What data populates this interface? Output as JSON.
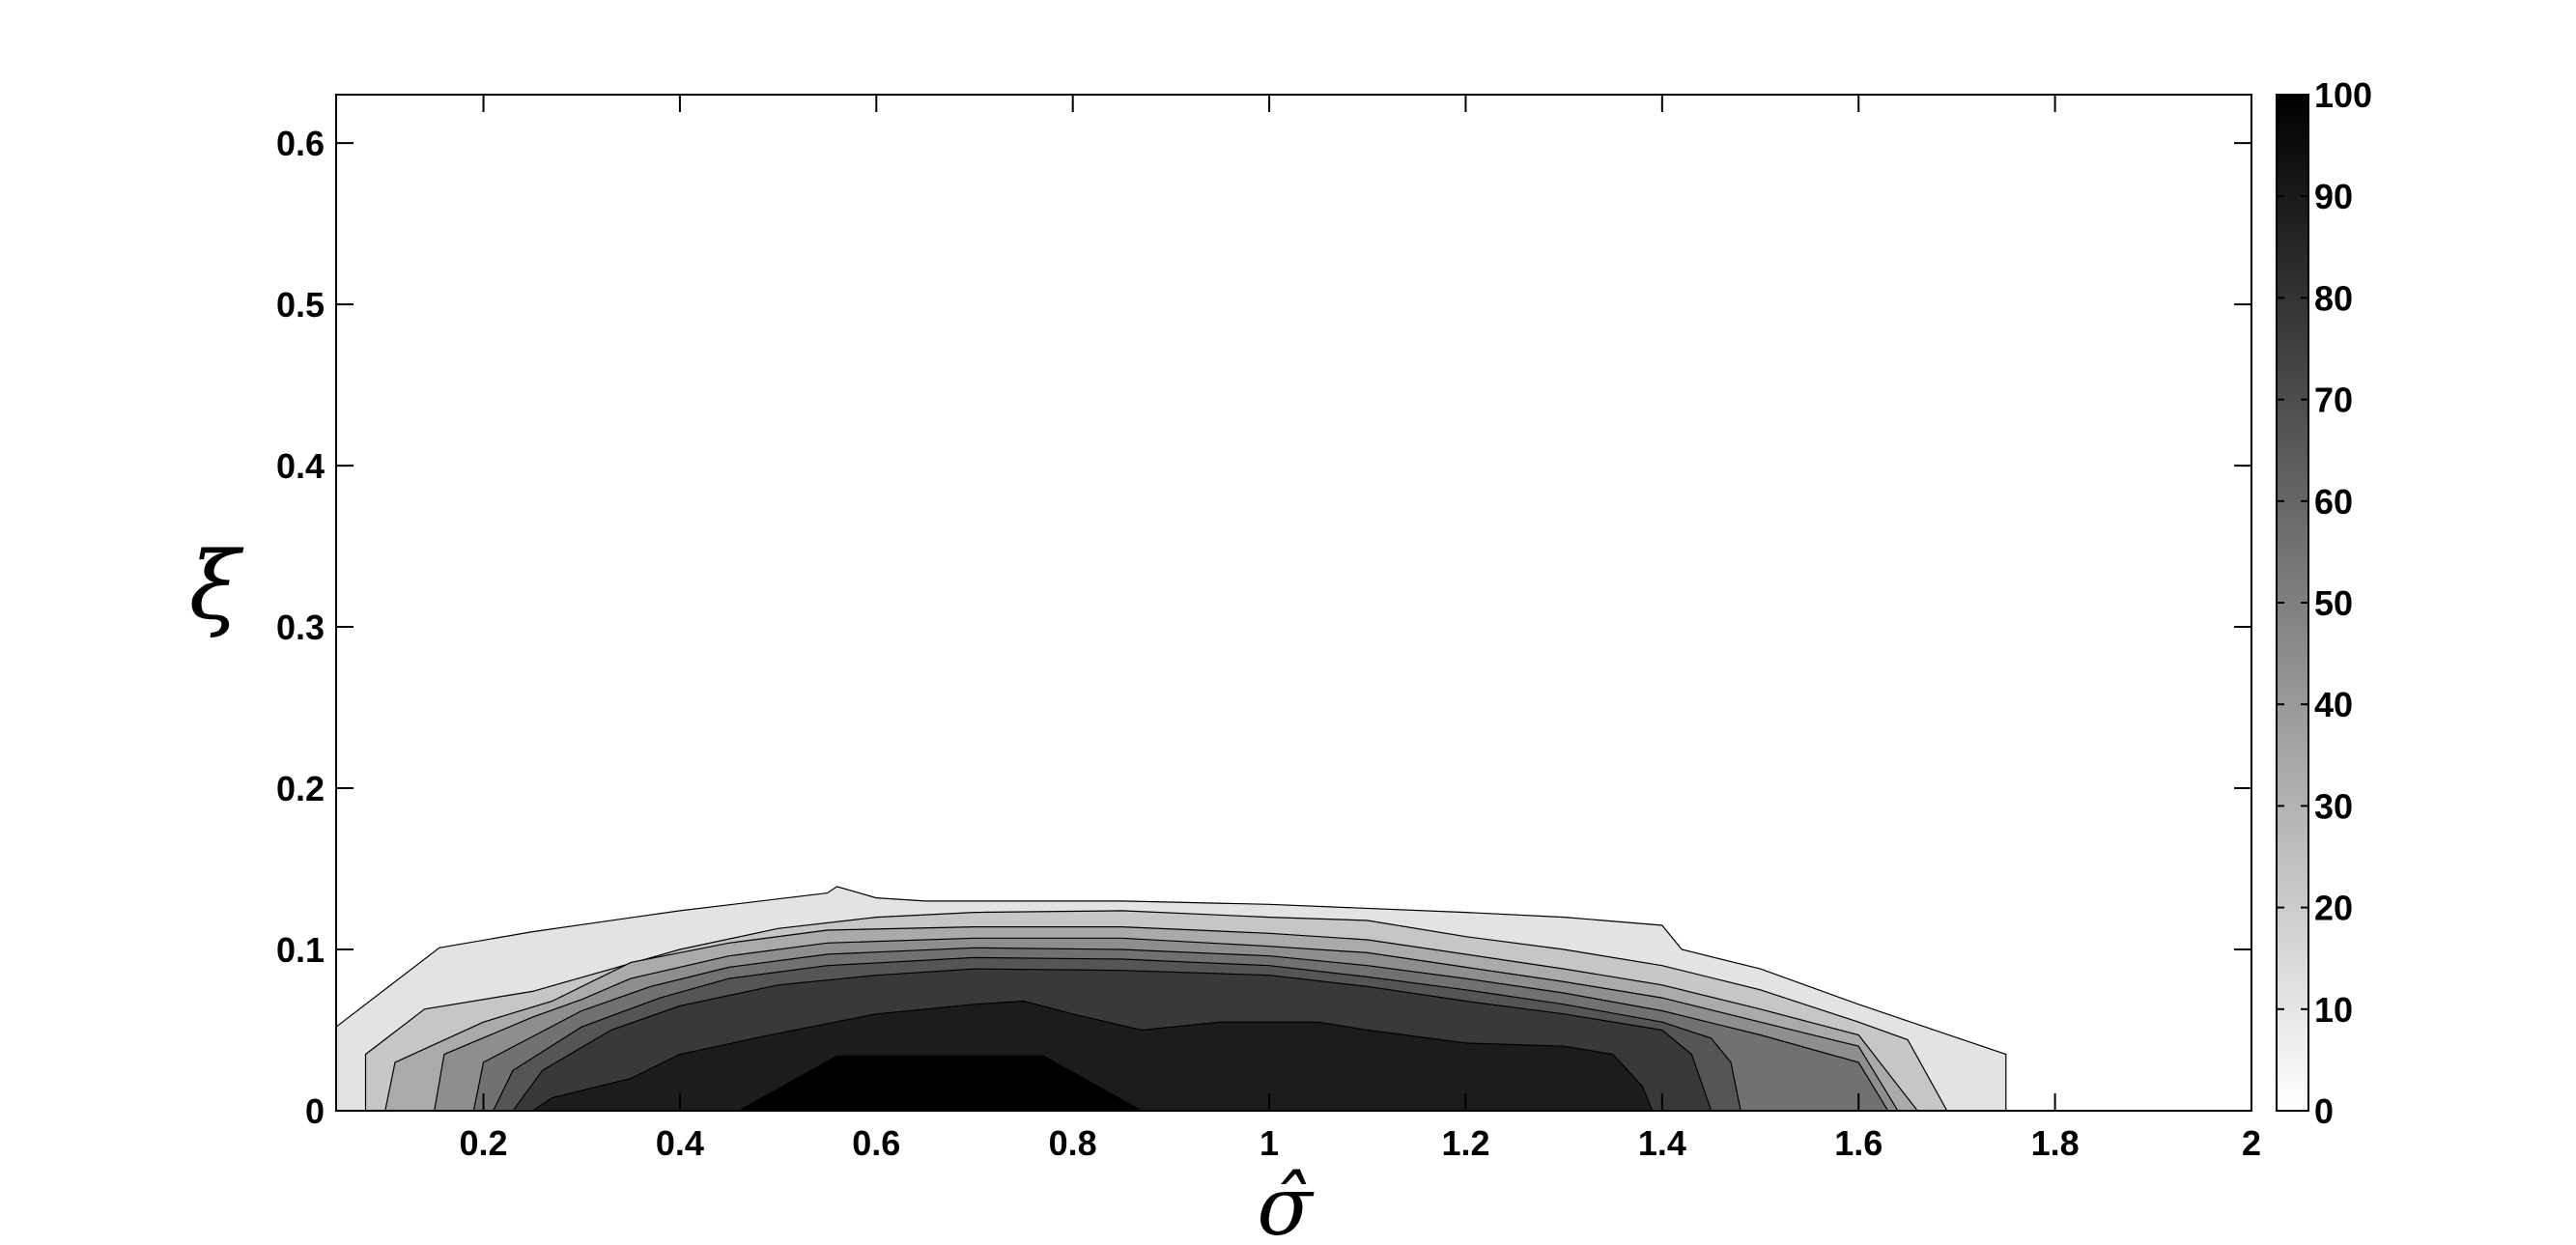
{
  "chart_data": {
    "type": "contourf",
    "xlabel": "σ̂",
    "ylabel": "ξ",
    "xlim": [
      0.05,
      2.0
    ],
    "ylim": [
      0,
      0.63
    ],
    "xticks": [
      0.2,
      0.4,
      0.6,
      0.8,
      1,
      1.2,
      1.4,
      1.6,
      1.8,
      2
    ],
    "yticks": [
      0,
      0.1,
      0.2,
      0.3,
      0.4,
      0.5,
      0.6
    ],
    "colorbar": {
      "range": [
        0,
        100
      ],
      "ticks": [
        0,
        10,
        20,
        30,
        40,
        50,
        60,
        70,
        80,
        90,
        100
      ],
      "colormap": "gray-reversed"
    },
    "levels": [
      {
        "value": 0,
        "color": "#ffffff",
        "boundary": [
          [
            0.05,
            0.018
          ],
          [
            0.06,
            0
          ],
          [
            0.05,
            0
          ]
        ]
      },
      {
        "value": 10,
        "color": "#e3e3e3",
        "boundary": [
          [
            0.05,
            0.052
          ],
          [
            0.155,
            0.101
          ],
          [
            0.25,
            0.111
          ],
          [
            0.4,
            0.124
          ],
          [
            0.55,
            0.135
          ],
          [
            0.56,
            0.139
          ],
          [
            0.6,
            0.132
          ],
          [
            0.65,
            0.13
          ],
          [
            0.85,
            0.13
          ],
          [
            1.0,
            0.128
          ],
          [
            1.2,
            0.123
          ],
          [
            1.3,
            0.12
          ],
          [
            1.4,
            0.115
          ],
          [
            1.42,
            0.1
          ],
          [
            1.5,
            0.088
          ],
          [
            1.6,
            0.066
          ],
          [
            1.75,
            0.035
          ],
          [
            1.75,
            0
          ]
        ]
      },
      {
        "value": 20,
        "color": "#c6c6c6",
        "boundary": [
          [
            0.08,
            0
          ],
          [
            0.08,
            0.035
          ],
          [
            0.14,
            0.063
          ],
          [
            0.25,
            0.074
          ],
          [
            0.4,
            0.1
          ],
          [
            0.5,
            0.113
          ],
          [
            0.6,
            0.12
          ],
          [
            0.7,
            0.123
          ],
          [
            0.85,
            0.124
          ],
          [
            1.0,
            0.12
          ],
          [
            1.1,
            0.118
          ],
          [
            1.2,
            0.108
          ],
          [
            1.3,
            0.1
          ],
          [
            1.4,
            0.09
          ],
          [
            1.5,
            0.075
          ],
          [
            1.6,
            0.055
          ],
          [
            1.65,
            0.044
          ],
          [
            1.69,
            0
          ]
        ]
      },
      {
        "value": 30,
        "color": "#aaaaaa",
        "boundary": [
          [
            0.1,
            0
          ],
          [
            0.11,
            0.03
          ],
          [
            0.2,
            0.055
          ],
          [
            0.27,
            0.068
          ],
          [
            0.35,
            0.092
          ],
          [
            0.45,
            0.104
          ],
          [
            0.55,
            0.112
          ],
          [
            0.7,
            0.114
          ],
          [
            0.85,
            0.114
          ],
          [
            1.0,
            0.11
          ],
          [
            1.1,
            0.106
          ],
          [
            1.2,
            0.097
          ],
          [
            1.3,
            0.088
          ],
          [
            1.4,
            0.078
          ],
          [
            1.5,
            0.063
          ],
          [
            1.6,
            0.047
          ],
          [
            1.66,
            0
          ]
        ]
      },
      {
        "value": 40,
        "color": "#8e8e8e",
        "boundary": [
          [
            0.15,
            0
          ],
          [
            0.16,
            0.035
          ],
          [
            0.25,
            0.058
          ],
          [
            0.3,
            0.069
          ],
          [
            0.35,
            0.082
          ],
          [
            0.45,
            0.096
          ],
          [
            0.55,
            0.104
          ],
          [
            0.7,
            0.107
          ],
          [
            0.85,
            0.107
          ],
          [
            1.0,
            0.102
          ],
          [
            1.1,
            0.098
          ],
          [
            1.2,
            0.089
          ],
          [
            1.3,
            0.08
          ],
          [
            1.4,
            0.07
          ],
          [
            1.5,
            0.055
          ],
          [
            1.6,
            0.04
          ],
          [
            1.64,
            0
          ]
        ]
      },
      {
        "value": 50,
        "color": "#717171",
        "boundary": [
          [
            0.19,
            0
          ],
          [
            0.2,
            0.03
          ],
          [
            0.3,
            0.062
          ],
          [
            0.37,
            0.077
          ],
          [
            0.45,
            0.089
          ],
          [
            0.55,
            0.097
          ],
          [
            0.7,
            0.101
          ],
          [
            0.85,
            0.1
          ],
          [
            1.0,
            0.096
          ],
          [
            1.1,
            0.09
          ],
          [
            1.2,
            0.082
          ],
          [
            1.3,
            0.073
          ],
          [
            1.4,
            0.062
          ],
          [
            1.5,
            0.047
          ],
          [
            1.6,
            0.03
          ],
          [
            1.63,
            0
          ]
        ]
      },
      {
        "value": 60,
        "color": "#555555",
        "boundary": [
          [
            0.21,
            0
          ],
          [
            0.23,
            0.025
          ],
          [
            0.3,
            0.052
          ],
          [
            0.38,
            0.07
          ],
          [
            0.45,
            0.082
          ],
          [
            0.55,
            0.09
          ],
          [
            0.7,
            0.095
          ],
          [
            0.85,
            0.094
          ],
          [
            1.0,
            0.09
          ],
          [
            1.1,
            0.083
          ],
          [
            1.2,
            0.075
          ],
          [
            1.3,
            0.066
          ],
          [
            1.4,
            0.055
          ],
          [
            1.45,
            0.045
          ],
          [
            1.47,
            0.03
          ],
          [
            1.48,
            0
          ]
        ]
      },
      {
        "value": 70,
        "color": "#393939",
        "boundary": [
          [
            0.23,
            0
          ],
          [
            0.26,
            0.025
          ],
          [
            0.33,
            0.05
          ],
          [
            0.4,
            0.065
          ],
          [
            0.5,
            0.078
          ],
          [
            0.6,
            0.084
          ],
          [
            0.7,
            0.088
          ],
          [
            0.85,
            0.087
          ],
          [
            1.0,
            0.084
          ],
          [
            1.1,
            0.077
          ],
          [
            1.2,
            0.068
          ],
          [
            1.3,
            0.06
          ],
          [
            1.4,
            0.05
          ],
          [
            1.43,
            0.035
          ],
          [
            1.45,
            0
          ]
        ]
      },
      {
        "value": 80,
        "color": "#1c1c1c",
        "boundary": [
          [
            0.25,
            0
          ],
          [
            0.27,
            0.008
          ],
          [
            0.35,
            0.02
          ],
          [
            0.4,
            0.035
          ],
          [
            0.5,
            0.048
          ],
          [
            0.6,
            0.06
          ],
          [
            0.7,
            0.066
          ],
          [
            0.75,
            0.068
          ],
          [
            0.8,
            0.06
          ],
          [
            0.87,
            0.05
          ],
          [
            0.95,
            0.055
          ],
          [
            1.05,
            0.055
          ],
          [
            1.1,
            0.05
          ],
          [
            1.2,
            0.042
          ],
          [
            1.3,
            0.04
          ],
          [
            1.35,
            0.035
          ],
          [
            1.38,
            0.015
          ],
          [
            1.39,
            0
          ]
        ]
      },
      {
        "value": 90,
        "color": "#000000",
        "boundary": [
          [
            0.46,
            0
          ],
          [
            0.56,
            0.034
          ],
          [
            0.77,
            0.034
          ],
          [
            0.87,
            0
          ]
        ]
      }
    ]
  }
}
